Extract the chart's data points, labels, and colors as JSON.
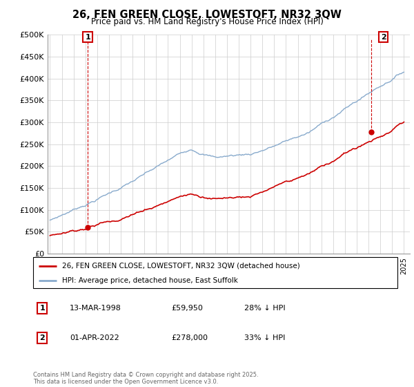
{
  "title": "26, FEN GREEN CLOSE, LOWESTOFT, NR32 3QW",
  "subtitle": "Price paid vs. HM Land Registry's House Price Index (HPI)",
  "ylim": [
    0,
    500000
  ],
  "yticks": [
    0,
    50000,
    100000,
    150000,
    200000,
    250000,
    300000,
    350000,
    400000,
    450000,
    500000
  ],
  "ytick_labels": [
    "£0",
    "£50K",
    "£100K",
    "£150K",
    "£200K",
    "£250K",
    "£300K",
    "£350K",
    "£400K",
    "£450K",
    "£500K"
  ],
  "xlim_start": 1994.8,
  "xlim_end": 2025.5,
  "sale1_year": 1998.2,
  "sale1_price": 59950,
  "sale2_year": 2022.25,
  "sale2_price": 278000,
  "red_color": "#cc0000",
  "blue_color": "#88aacc",
  "bg_color": "#ffffff",
  "grid_color": "#cccccc",
  "legend_line1": "26, FEN GREEN CLOSE, LOWESTOFT, NR32 3QW (detached house)",
  "legend_line2": "HPI: Average price, detached house, East Suffolk",
  "table_row1": [
    "1",
    "13-MAR-1998",
    "£59,950",
    "28% ↓ HPI"
  ],
  "table_row2": [
    "2",
    "01-APR-2022",
    "£278,000",
    "33% ↓ HPI"
  ],
  "footnote": "Contains HM Land Registry data © Crown copyright and database right 2025.\nThis data is licensed under the Open Government Licence v3.0."
}
